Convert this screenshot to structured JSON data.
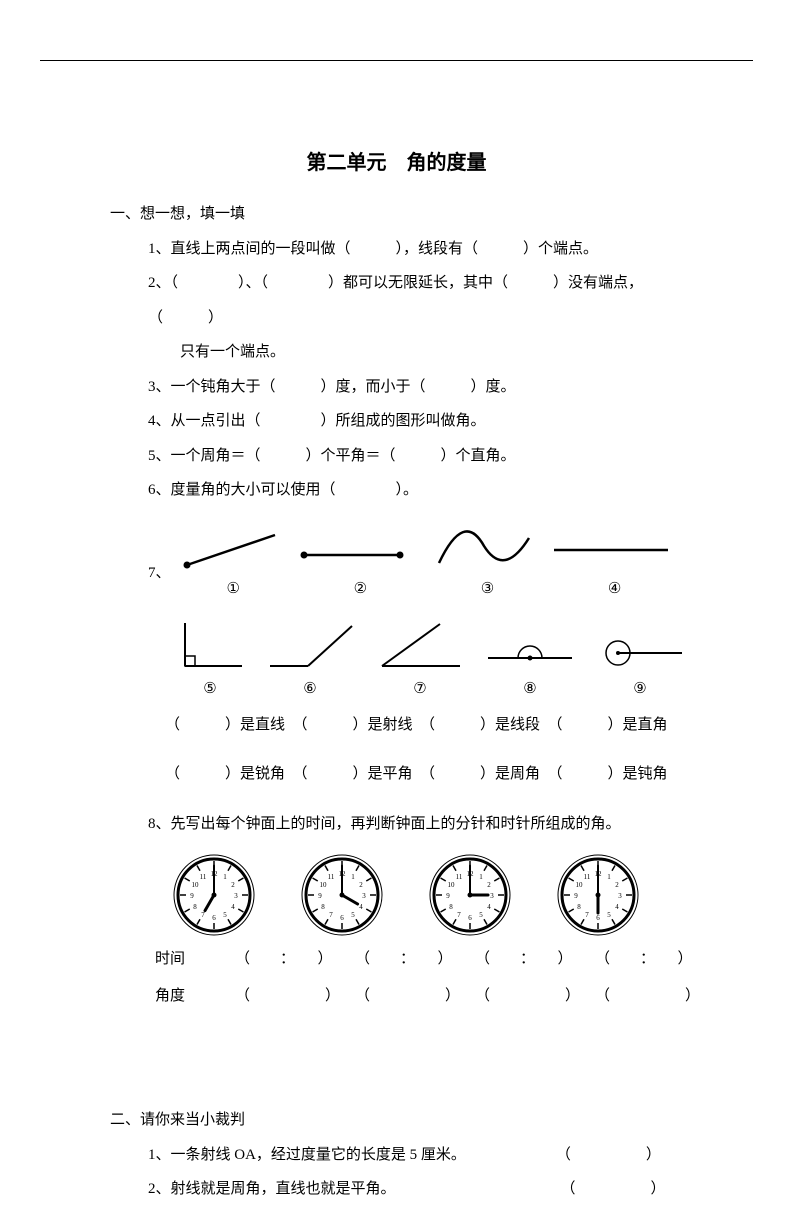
{
  "title": "第二单元　角的度量",
  "section1": {
    "heading": "一、想一想，填一填",
    "q1": "1、直线上两点间的一段叫做（　　　），线段有（　　　）个端点。",
    "q2a": "2、（　　　　）、（　　　　）都可以无限延长，其中（　　　）没有端点，（　　　）",
    "q2b": "只有一个端点。",
    "q3": "3、一个钝角大于（　　　）度，而小于（　　　）度。",
    "q4": "4、从一点引出（　　　　）所组成的图形叫做角。",
    "q5": "5、一个周角＝（　　　）个平角＝（　　　）个直角。",
    "q6": "6、度量角的大小可以使用（　　　　）。",
    "q7_prefix": "7、",
    "labels_top": {
      "l1": "①",
      "l2": "②",
      "l3": "③",
      "l4": "④"
    },
    "labels_bot": {
      "l5": "⑤",
      "l6": "⑥",
      "l7": "⑦",
      "l8": "⑧",
      "l9": "⑨"
    },
    "blanks1": "（　　　）是直线　（　　　）是射线　（　　　）是线段　（　　　）是直角",
    "blanks2": "（　　　）是锐角　（　　　）是平角　（　　　）是周角　（　　　）是钝角",
    "q8": "8、先写出每个钟面上的时间，再判断钟面上的分针和时针所组成的角。",
    "q8_row1_label": "时间",
    "q8_row2_label": "角度",
    "q8_time_cell": "（　　：　　）",
    "q8_angle_cell": "（　　　　　）",
    "clocks": [
      {
        "hour": 7,
        "minute": 0
      },
      {
        "hour": 4,
        "minute": 0
      },
      {
        "hour": 3,
        "minute": 0
      },
      {
        "hour": 6,
        "minute": 0
      }
    ]
  },
  "section2": {
    "heading": "二、请你来当小裁判",
    "q1": "1、一条射线 OA，经过度量它的长度是 5 厘米。　　　　　　　（　　　　　）",
    "q2": "2、射线就是周角，直线也就是平角。　　　　　　　　　　　　（　　　　　）"
  },
  "style": {
    "stroke": "#000000",
    "stroke_width": 2,
    "clock_radius": 36,
    "clock_stroke": 3,
    "font_family": "SimSun"
  }
}
